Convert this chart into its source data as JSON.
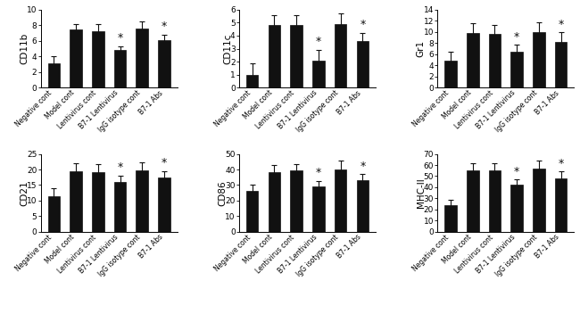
{
  "subplots": [
    {
      "ylabel": "CD11b",
      "ylim": [
        0,
        10
      ],
      "yticks": [
        0,
        2,
        4,
        6,
        8,
        10
      ],
      "values": [
        3.1,
        7.5,
        7.2,
        4.8,
        7.6,
        6.1
      ],
      "errors": [
        0.9,
        0.7,
        0.9,
        0.5,
        0.9,
        0.7
      ],
      "star": [
        false,
        false,
        false,
        true,
        false,
        true
      ]
    },
    {
      "ylabel": "CD11c",
      "ylim": [
        0,
        6
      ],
      "yticks": [
        0,
        1,
        2,
        3,
        4,
        5,
        6
      ],
      "values": [
        1.0,
        4.8,
        4.8,
        2.1,
        4.9,
        3.6
      ],
      "errors": [
        0.9,
        0.8,
        0.8,
        0.8,
        0.8,
        0.6
      ],
      "star": [
        false,
        false,
        false,
        true,
        false,
        true
      ]
    },
    {
      "ylabel": "Gr1",
      "ylim": [
        0,
        14
      ],
      "yticks": [
        0,
        2,
        4,
        6,
        8,
        10,
        12,
        14
      ],
      "values": [
        4.9,
        9.8,
        9.6,
        6.5,
        9.9,
        8.2
      ],
      "errors": [
        1.5,
        1.8,
        1.7,
        1.2,
        1.8,
        1.7
      ],
      "star": [
        false,
        false,
        false,
        true,
        false,
        true
      ]
    },
    {
      "ylabel": "CD21",
      "ylim": [
        0,
        25
      ],
      "yticks": [
        0,
        5,
        10,
        15,
        20,
        25
      ],
      "values": [
        11.5,
        19.5,
        19.2,
        16.0,
        19.8,
        17.5
      ],
      "errors": [
        2.5,
        2.5,
        2.5,
        2.0,
        2.5,
        2.0
      ],
      "star": [
        false,
        false,
        false,
        true,
        false,
        true
      ]
    },
    {
      "ylabel": "CD86",
      "ylim": [
        0,
        50
      ],
      "yticks": [
        0,
        10,
        20,
        30,
        40,
        50
      ],
      "values": [
        26.0,
        38.5,
        39.5,
        29.0,
        40.0,
        33.0
      ],
      "errors": [
        4.0,
        4.5,
        4.0,
        3.5,
        5.5,
        4.0
      ],
      "star": [
        false,
        false,
        false,
        true,
        false,
        true
      ]
    },
    {
      "ylabel": "MHC-II",
      "ylim": [
        0,
        70
      ],
      "yticks": [
        0,
        10,
        20,
        30,
        40,
        50,
        60,
        70
      ],
      "values": [
        24.0,
        55.0,
        55.0,
        42.0,
        57.0,
        48.0
      ],
      "errors": [
        5.0,
        7.0,
        7.0,
        5.0,
        7.0,
        6.0
      ],
      "star": [
        false,
        false,
        false,
        true,
        false,
        true
      ]
    }
  ],
  "categories": [
    "Negative cont",
    "Model cont",
    "Lentivirus cont",
    "B7-1 Lentivirus",
    "IgG isotype cont",
    "B7-1 Abs"
  ],
  "bar_color": "#111111",
  "bar_width": 0.55,
  "error_color": "#111111",
  "star_color": "#111111",
  "background_color": "#ffffff",
  "fig_background": "#ffffff",
  "fontsize_ylabel": 7.5,
  "fontsize_ytick": 6.5,
  "fontsize_xticklabel": 5.5,
  "fontsize_star": 9
}
